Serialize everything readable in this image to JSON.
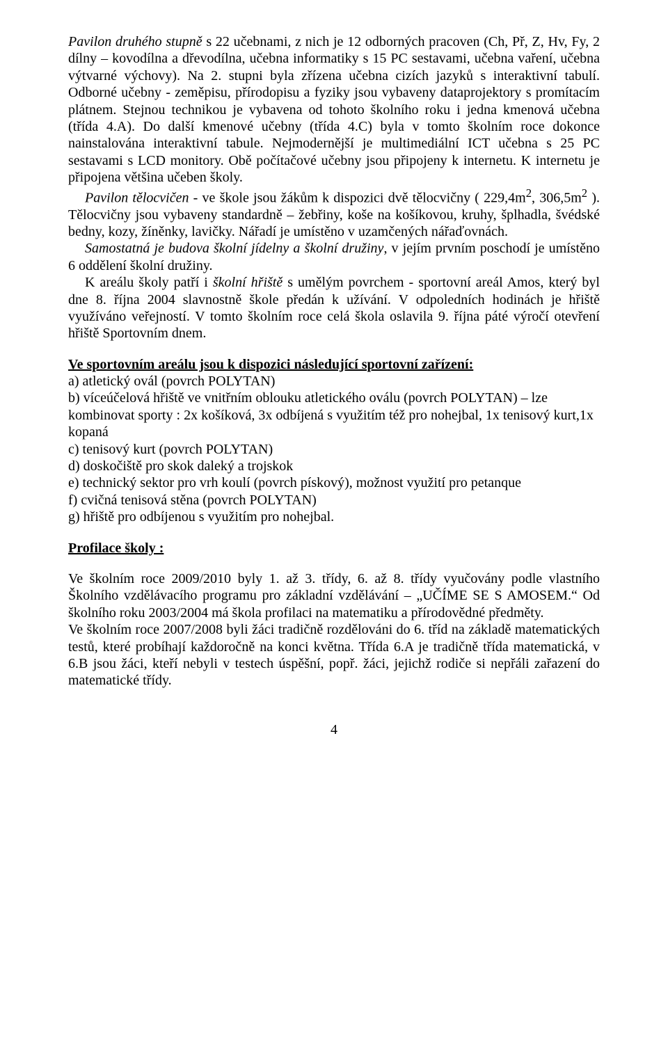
{
  "p1_run1_italic": "Pavilon druhého stupně",
  "p1_run2": " s 22 učebnami, z nich je 12 odborných pracoven (Ch, Př, Z, Hv, Fy, 2 dílny – kovodílna a dřevodílna, učebna informatiky s 15 PC sestavami, učebna vaření, učebna výtvarné výchovy). Na 2. stupni byla zřízena učebna cizích jazyků s interaktivní tabulí. Odborné učebny -  zeměpisu, přírodopisu a fyziky jsou vybaveny dataprojektory s promítacím plátnem. Stejnou technikou  je vybavena od tohoto školního roku i jedna kmenová učebna (třída 4.A). Do další kmenové učebny (třída 4.C) byla v tomto školním roce dokonce nainstalována interaktivní tabule. Nejmodernější je multimediální ICT učebna s 25 PC sestavami s LCD monitory. Obě počítačové učebny jsou připojeny k internetu. K internetu je připojena většina učeben školy.",
  "p2_run1_italic": "Pavilon tělocvičen",
  "p2_run2a": " - ve škole jsou žákům k dispozici dvě tělocvičny ( 229,4m",
  "p2_sup1": "2",
  "p2_run2b": ", 306,5m",
  "p2_sup2": "2",
  "p2_run2c": " ). Tělocvičny jsou vybaveny standardně – žebřiny, koše na košíkovou, kruhy, šplhadla, švédské bedny, kozy, žíněnky, lavičky. Nářadí je umístěno v uzamčených nářaďovnách.",
  "p3_run1_italic": "Samostatná je budova školní jídelny a školní družiny",
  "p3_run2": ", v jejím prvním poschodí je umístěno 6 oddělení školní družiny.",
  "p4_run1": "K areálu školy patří i ",
  "p4_run2_italic": "školní hřiště",
  "p4_run3": " s umělým povrchem - sportovní areál Amos, který byl dne 8. října 2004 slavnostně škole předán k užívání. V odpoledních hodinách je hřiště využíváno veřejností. V tomto školním roce celá škola oslavila 9. října páté výročí otevření hřiště Sportovním dnem.",
  "heading1": "Ve sportovním areálu jsou k dispozici následující sportovní zařízení:",
  "list": {
    "a": "a) atletický ovál (povrch POLYTAN)",
    "b": "b) víceúčelová hřiště ve vnitřním oblouku atletického oválu (povrch POLYTAN) – lze kombinovat sporty : 2x košíková, 3x odbíjená s využitím též pro nohejbal, 1x tenisový kurt,1x kopaná",
    "c": "c) tenisový kurt (povrch POLYTAN)",
    "d": "d) doskočiště pro skok daleký a trojskok",
    "e": "e) technický sektor pro vrh koulí (povrch pískový), možnost využití pro petanque",
    "f": "f) cvičná tenisová stěna (povrch POLYTAN)",
    "g": "g) hřiště pro odbíjenou s využitím pro nohejbal."
  },
  "heading2": "Profilace školy :",
  "p5": "Ve školním roce 2009/2010 byly 1. až 3. třídy, 6. až 8. třídy vyučovány podle vlastního Školního vzdělávacího programu pro základní vzdělávání – „UČÍME SE S AMOSEM.“ Od školního roku 2003/2004 má škola profilaci na matematiku a přírodovědné předměty.",
  "p6": "Ve školním roce 2007/2008 byli žáci tradičně rozdělováni do 6. tříd na základě matematických testů, které probíhají každoročně na konci května. Třída 6.A je tradičně třída matematická, v 6.B jsou žáci, kteří nebyli v testech úspěšní, popř. žáci, jejichž rodiče si nepřáli zařazení do matematické třídy.",
  "pageNumber": "4"
}
